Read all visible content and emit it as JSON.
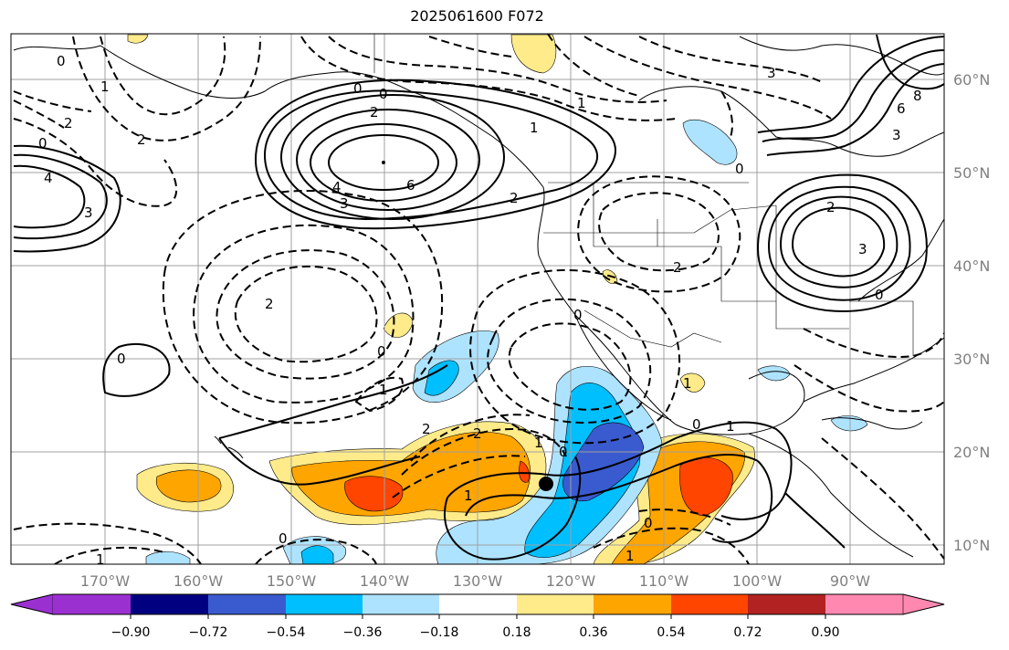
{
  "title": "2025061600 F072",
  "map": {
    "projection": "Mercator",
    "lon_range": [
      -180,
      -80
    ],
    "lat_range": [
      8,
      65
    ],
    "longitude_labels": [
      "170°W",
      "160°W",
      "150°W",
      "140°W",
      "130°W",
      "120°W",
      "110°W",
      "100°W",
      "90°W"
    ],
    "latitude_labels": [
      "60°N",
      "50°N",
      "40°N",
      "30°N",
      "20°N",
      "10°N"
    ],
    "gridlines": true,
    "contour_style": {
      "positive": "solid",
      "negative": "dashed",
      "color": "#000000"
    },
    "contour_labels": [
      "0",
      "2",
      "1",
      "0",
      "2",
      "3",
      "4",
      "6",
      "1",
      "2",
      "0",
      "2",
      "3",
      "8",
      "6",
      "3",
      "2",
      "3",
      "0",
      "2",
      "0",
      "0",
      "1",
      "2",
      "2",
      "0",
      "1",
      "0",
      "1",
      "0",
      "1",
      "0",
      "0",
      "1",
      "1",
      "0",
      "1",
      "2",
      "1",
      "0",
      "4",
      "3"
    ],
    "marker": {
      "symbol": "filled-circle",
      "color": "#000000",
      "lon": -122.5,
      "lat": 16.5
    }
  },
  "colorbar": {
    "extend": "both",
    "tick_labels": [
      "−0.90",
      "−0.72",
      "−0.54",
      "−0.36",
      "−0.18",
      "0.18",
      "0.36",
      "0.54",
      "0.72",
      "0.90"
    ],
    "colors": [
      "#9b30d0",
      "#000080",
      "#3a5bcf",
      "#00bfff",
      "#aee3ff",
      "#ffffff",
      "#ffeb8a",
      "#ffa500",
      "#ff4500",
      "#b22222",
      "#ff88b0"
    ]
  }
}
